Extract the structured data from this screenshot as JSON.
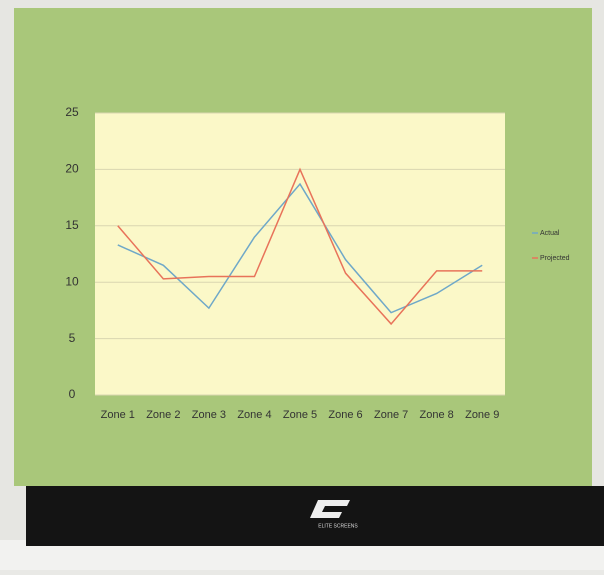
{
  "chart_data": {
    "type": "line",
    "categories": [
      "Zone 1",
      "Zone 2",
      "Zone 3",
      "Zone 4",
      "Zone 5",
      "Zone 6",
      "Zone 7",
      "Zone 8",
      "Zone 9"
    ],
    "series": [
      {
        "name": "Actual",
        "color": "#6fa8c8",
        "values": [
          13.3,
          11.5,
          7.7,
          14,
          18.7,
          12,
          7.3,
          9,
          11.5
        ]
      },
      {
        "name": "Projected",
        "color": "#e8735a",
        "values": [
          15,
          10.3,
          10.5,
          10.5,
          20,
          10.8,
          6.3,
          11,
          11
        ]
      }
    ],
    "ylim": [
      0,
      25
    ],
    "yticks": [
      0,
      5,
      10,
      15,
      20,
      25
    ],
    "grid": true,
    "legend": "right"
  },
  "brand": "ELITE SCREENS"
}
